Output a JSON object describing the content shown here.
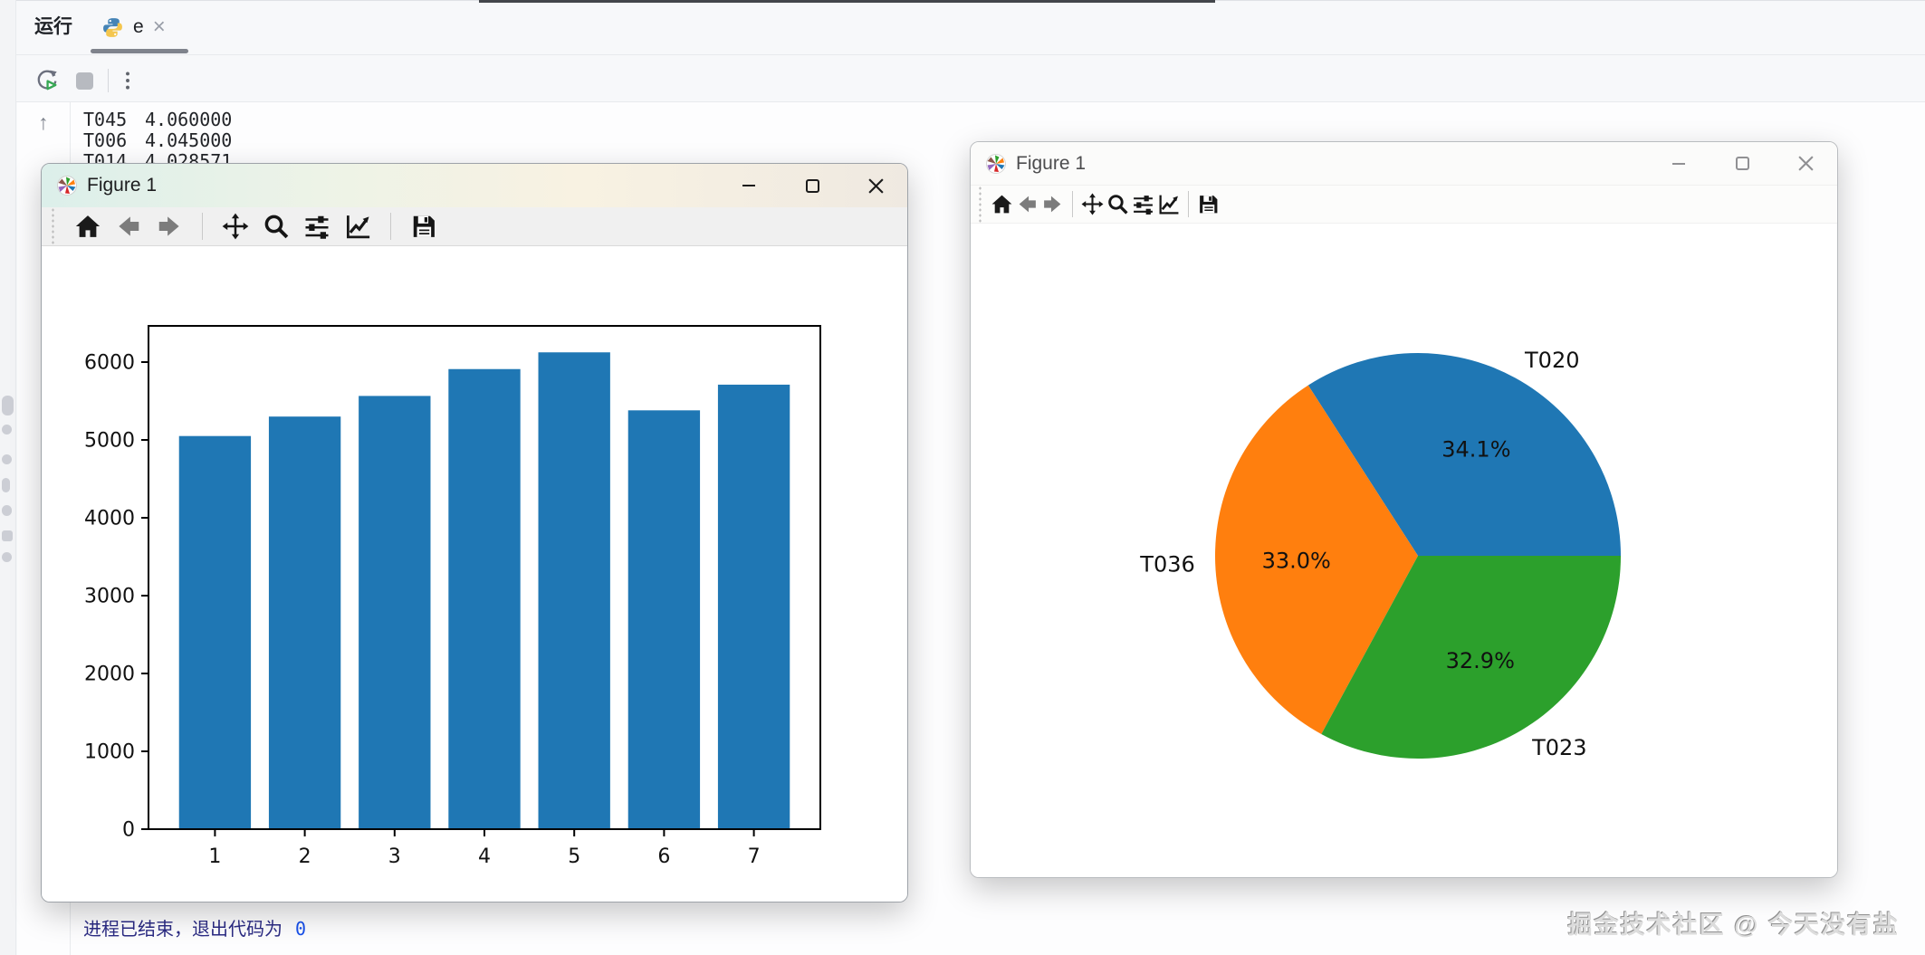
{
  "ide": {
    "panel_label": "运行",
    "tab": {
      "icon": "python-icon",
      "label": "e",
      "close_glyph": "×"
    },
    "run_toolbar_icons": [
      "rerun-icon",
      "stop-icon",
      "more-vertical-icon"
    ],
    "gutter": {
      "icon": "scroll-up-icon",
      "glyph": "↑"
    },
    "console_lines": [
      {
        "id": "T045",
        "value": "4.060000"
      },
      {
        "id": "T006",
        "value": "4.045000"
      },
      {
        "id": "T014",
        "value": "4.028571"
      }
    ],
    "status": {
      "text": "进程已结束，退出代码为",
      "exit_code": "0"
    }
  },
  "figure_windows": {
    "window_controls": [
      "minimize",
      "maximize",
      "close"
    ],
    "toolbar_icons": [
      "home",
      "back",
      "forward",
      "pan",
      "zoom",
      "configure-subplots",
      "edit-axes",
      "save"
    ],
    "bar": {
      "title": "Figure 1"
    },
    "pie": {
      "title": "Figure 1"
    }
  },
  "chart_data": [
    {
      "type": "bar",
      "title": "",
      "xlabel": "",
      "ylabel": "",
      "categories": [
        1,
        2,
        3,
        4,
        5,
        6,
        7
      ],
      "values": [
        5050,
        5300,
        5565,
        5910,
        6125,
        5380,
        5710
      ],
      "bar_color": "#1f77b4",
      "bar_width": 0.8,
      "xlim": [
        0.26,
        7.74
      ],
      "ylim": [
        0,
        6465
      ],
      "yticks": [
        0,
        1000,
        2000,
        3000,
        4000,
        5000,
        6000
      ],
      "xticks": [
        1,
        2,
        3,
        4,
        5,
        6,
        7
      ],
      "grid": false,
      "legend": false
    },
    {
      "type": "pie",
      "title": "",
      "labels": [
        "T020",
        "T036",
        "T023"
      ],
      "values": [
        34.1,
        33.0,
        32.9
      ],
      "percent_labels": [
        "34.1%",
        "33.0%",
        "32.9%"
      ],
      "colors": [
        "#1f77b4",
        "#ff7f0e",
        "#2ca02c"
      ],
      "start_angle": 0,
      "counterclock": true,
      "label_distance": 1.1,
      "pct_distance": 0.6
    }
  ],
  "watermark": "掘金技术社区 @ 今天没有盐"
}
